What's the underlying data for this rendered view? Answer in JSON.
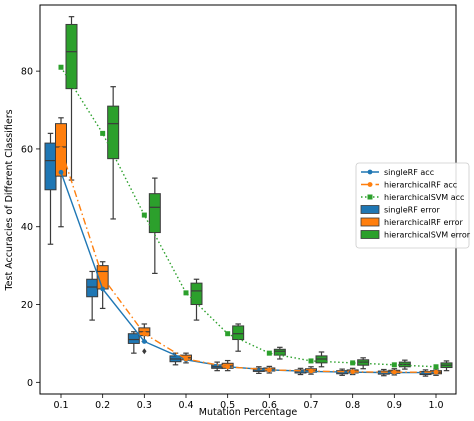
{
  "chart_data": {
    "type": "box",
    "title": "",
    "xlabel": "Mutation Percentage",
    "ylabel": "Test Accuracies of Different Classifiers",
    "categories": [
      "0.1",
      "0.2",
      "0.3",
      "0.4",
      "0.5",
      "0.6",
      "0.7",
      "0.8",
      "0.9",
      "1.0"
    ],
    "ylim": [
      -3,
      97
    ],
    "yticks": [
      0,
      20,
      40,
      60,
      80
    ],
    "grid": false,
    "legend_position": "right",
    "series": [
      {
        "name": "singleRF acc",
        "kind": "line",
        "color": "#1f77b4",
        "linestyle": "solid",
        "marker": "circle",
        "x": [
          0.1,
          0.2,
          0.3,
          0.4,
          0.5,
          0.6,
          0.7,
          0.8,
          0.9,
          1.0
        ],
        "values": [
          54,
          24,
          10.5,
          5.8,
          4,
          3.2,
          2.8,
          2.6,
          2.5,
          2.5
        ]
      },
      {
        "name": "hierarchicalRF acc",
        "kind": "line",
        "color": "#ff7f0e",
        "linestyle": "dashdot",
        "marker": "circle",
        "x": [
          0.1,
          0.2,
          0.3,
          0.4,
          0.5,
          0.6,
          0.7,
          0.8,
          0.9,
          1.0
        ],
        "values": [
          60,
          27,
          12.5,
          6,
          4,
          3.2,
          2.9,
          2.7,
          2.6,
          2.6
        ]
      },
      {
        "name": "hierarchicalSVM acc",
        "kind": "line",
        "color": "#2ca02c",
        "linestyle": "dotted",
        "marker": "square",
        "x": [
          0.1,
          0.2,
          0.3,
          0.4,
          0.5,
          0.6,
          0.7,
          0.8,
          0.9,
          1.0
        ],
        "values": [
          81,
          64,
          43,
          23,
          12.5,
          7.5,
          5.5,
          5,
          4.5,
          4
        ]
      },
      {
        "name": "singleRF error",
        "kind": "box",
        "color": "#1f77b4",
        "boxes": [
          {
            "x": 0.1,
            "whislo": 35.5,
            "q1": 49.5,
            "med": 57,
            "q3": 61.5,
            "whishi": 64,
            "fliers": []
          },
          {
            "x": 0.2,
            "whislo": 16,
            "q1": 22,
            "med": 24.5,
            "q3": 26.5,
            "whishi": 28.5,
            "fliers": []
          },
          {
            "x": 0.3,
            "whislo": 7.5,
            "q1": 10,
            "med": 11,
            "q3": 12.5,
            "whishi": 13,
            "fliers": []
          },
          {
            "x": 0.4,
            "whislo": 4.5,
            "q1": 5.3,
            "med": 6,
            "q3": 6.8,
            "whishi": 7.5,
            "fliers": []
          },
          {
            "x": 0.5,
            "whislo": 3,
            "q1": 3.6,
            "med": 4,
            "q3": 4.5,
            "whishi": 5.2,
            "fliers": []
          },
          {
            "x": 0.6,
            "whislo": 2.3,
            "q1": 2.8,
            "med": 3.2,
            "q3": 3.6,
            "whishi": 4,
            "fliers": []
          },
          {
            "x": 0.7,
            "whislo": 2,
            "q1": 2.4,
            "med": 2.8,
            "q3": 3.2,
            "whishi": 3.6,
            "fliers": []
          },
          {
            "x": 0.8,
            "whislo": 1.8,
            "q1": 2.2,
            "med": 2.6,
            "q3": 3,
            "whishi": 3.4,
            "fliers": []
          },
          {
            "x": 0.9,
            "whislo": 1.7,
            "q1": 2.1,
            "med": 2.5,
            "q3": 2.9,
            "whishi": 3.3,
            "fliers": []
          },
          {
            "x": 1.0,
            "whislo": 1.6,
            "q1": 2,
            "med": 2.4,
            "q3": 2.8,
            "whishi": 3.2,
            "fliers": []
          }
        ]
      },
      {
        "name": "hierarchicalRF error",
        "kind": "box",
        "color": "#ff7f0e",
        "boxes": [
          {
            "x": 0.1,
            "whislo": 40,
            "q1": 53,
            "med": 60.5,
            "q3": 66.5,
            "whishi": 68,
            "fliers": []
          },
          {
            "x": 0.2,
            "whislo": 19,
            "q1": 24,
            "med": 28.5,
            "q3": 30,
            "whishi": 31,
            "fliers": []
          },
          {
            "x": 0.3,
            "whislo": 10.5,
            "q1": 12,
            "med": 13,
            "q3": 14,
            "whishi": 15,
            "fliers": [
              8
            ]
          },
          {
            "x": 0.4,
            "whislo": 5,
            "q1": 5.8,
            "med": 6.3,
            "q3": 7,
            "whishi": 7.5,
            "fliers": []
          },
          {
            "x": 0.5,
            "whislo": 3,
            "q1": 3.6,
            "med": 4.2,
            "q3": 4.9,
            "whishi": 5.6,
            "fliers": []
          },
          {
            "x": 0.6,
            "whislo": 2.4,
            "q1": 2.9,
            "med": 3.3,
            "q3": 3.7,
            "whishi": 4.1,
            "fliers": []
          },
          {
            "x": 0.7,
            "whislo": 2.1,
            "q1": 2.6,
            "med": 3,
            "q3": 3.5,
            "whishi": 4,
            "fliers": []
          },
          {
            "x": 0.8,
            "whislo": 2,
            "q1": 2.4,
            "med": 2.8,
            "q3": 3.2,
            "whishi": 3.6,
            "fliers": []
          },
          {
            "x": 0.9,
            "whislo": 1.9,
            "q1": 2.3,
            "med": 2.7,
            "q3": 3.1,
            "whishi": 3.5,
            "fliers": []
          },
          {
            "x": 1.0,
            "whislo": 1.8,
            "q1": 2.2,
            "med": 2.6,
            "q3": 3,
            "whishi": 3.4,
            "fliers": []
          }
        ]
      },
      {
        "name": "hierarchicalSVM error",
        "kind": "box",
        "color": "#2ca02c",
        "boxes": [
          {
            "x": 0.1,
            "whislo": 52,
            "q1": 75.5,
            "med": 85,
            "q3": 92,
            "whishi": 94,
            "fliers": []
          },
          {
            "x": 0.2,
            "whislo": 42,
            "q1": 57.5,
            "med": 66.5,
            "q3": 71,
            "whishi": 76,
            "fliers": []
          },
          {
            "x": 0.3,
            "whislo": 28,
            "q1": 38.5,
            "med": 45,
            "q3": 48.5,
            "whishi": 52.5,
            "fliers": []
          },
          {
            "x": 0.4,
            "whislo": 16,
            "q1": 20,
            "med": 23.5,
            "q3": 25.5,
            "whishi": 26.5,
            "fliers": []
          },
          {
            "x": 0.5,
            "whislo": 8,
            "q1": 11,
            "med": 12.5,
            "q3": 14.5,
            "whishi": 15,
            "fliers": []
          },
          {
            "x": 0.6,
            "whislo": 6,
            "q1": 7,
            "med": 8,
            "q3": 8.5,
            "whishi": 9,
            "fliers": []
          },
          {
            "x": 0.7,
            "whislo": 4,
            "q1": 5,
            "med": 6,
            "q3": 6.8,
            "whishi": 7.8,
            "fliers": []
          },
          {
            "x": 0.8,
            "whislo": 3.5,
            "q1": 4.4,
            "med": 5.2,
            "q3": 5.8,
            "whishi": 6.3,
            "fliers": []
          },
          {
            "x": 0.9,
            "whislo": 3.4,
            "q1": 4,
            "med": 4.6,
            "q3": 5.2,
            "whishi": 5.7,
            "fliers": []
          },
          {
            "x": 1.0,
            "whislo": 3,
            "q1": 3.8,
            "med": 4.4,
            "q3": 5,
            "whishi": 5.5,
            "fliers": []
          }
        ]
      }
    ]
  }
}
